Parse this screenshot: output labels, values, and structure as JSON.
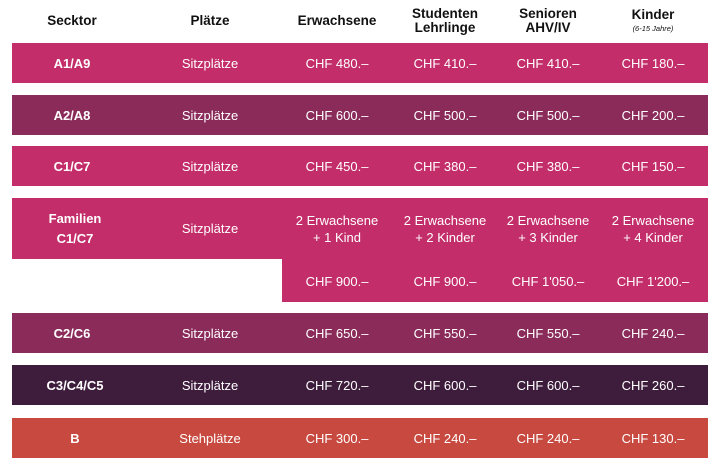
{
  "headers": {
    "sektor": "Secktor",
    "plaetze": "Plätze",
    "erwachsene": "Erwachsene",
    "studenten": "Studenten",
    "lehrlinge": "Lehrlinge",
    "senioren": "Senioren",
    "ahv": "AHV/IV",
    "kinder": "Kinder",
    "kinder_sub": "(6-15 Jahre)"
  },
  "rows": [
    {
      "sektor": "A1/A9",
      "plaetze": "Sitzplätze",
      "erwachsene": "CHF 480.–",
      "studenten": "CHF 410.–",
      "senioren": "CHF 410.–",
      "kinder": "CHF 180.–",
      "color": "#c32d69"
    },
    {
      "sektor": "A2/A8",
      "plaetze": "Sitzplätze",
      "erwachsene": "CHF 600.–",
      "studenten": "CHF 500.–",
      "senioren": "CHF 500.–",
      "kinder": "CHF 200.–",
      "color": "#8a2b5a"
    },
    {
      "sektor": "C1/C7",
      "plaetze": "Sitzplätze",
      "erwachsene": "CHF 450.–",
      "studenten": "CHF 380.–",
      "senioren": "CHF 380.–",
      "kinder": "CHF 150.–",
      "color": "#c32d69"
    },
    {
      "sektor": "C2/C6",
      "plaetze": "Sitzplätze",
      "erwachsene": "CHF 650.–",
      "studenten": "CHF 550.–",
      "senioren": "CHF 550.–",
      "kinder": "CHF 240.–",
      "color": "#8a2b5a"
    },
    {
      "sektor": "C3/C4/C5",
      "plaetze": "Sitzplätze",
      "erwachsene": "CHF 720.–",
      "studenten": "CHF 600.–",
      "senioren": "CHF 600.–",
      "kinder": "CHF 260.–",
      "color": "#3e1c3c"
    },
    {
      "sektor": "B",
      "plaetze": "Stehplätze",
      "erwachsene": "CHF 300.–",
      "studenten": "CHF 240.–",
      "senioren": "CHF 240.–",
      "kinder": "CHF 130.–",
      "color": "#c8493f"
    }
  ],
  "familien": {
    "sektor_line1": "Familien",
    "sektor_line2": "C1/C7",
    "plaetze": "Sitzplätze",
    "packages": [
      {
        "line1": "2 Erwachsene",
        "line2": "+ 1 Kind",
        "price": "CHF 900.–"
      },
      {
        "line1": "2 Erwachsene",
        "line2": "+ 2 Kinder",
        "price": "CHF 900.–"
      },
      {
        "line1": "2 Erwachsene",
        "line2": "+ 3 Kinder",
        "price": "CHF 1'050.–"
      },
      {
        "line1": "2 Erwachsene",
        "line2": "+ 4 Kinder",
        "price": "CHF 1'200.–"
      }
    ]
  }
}
